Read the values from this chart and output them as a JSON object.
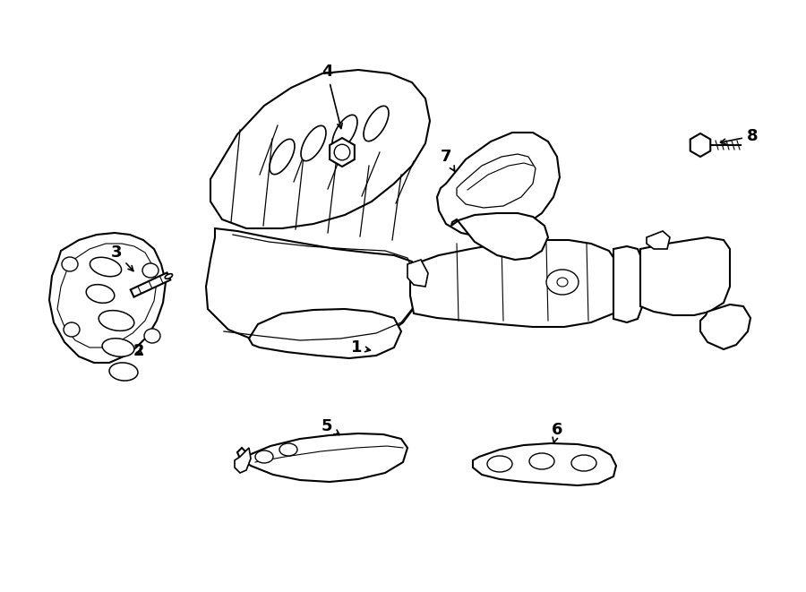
{
  "background_color": "#ffffff",
  "line_color": "#000000",
  "line_width": 1.5,
  "fig_width": 9.0,
  "fig_height": 6.61,
  "dpi": 100
}
